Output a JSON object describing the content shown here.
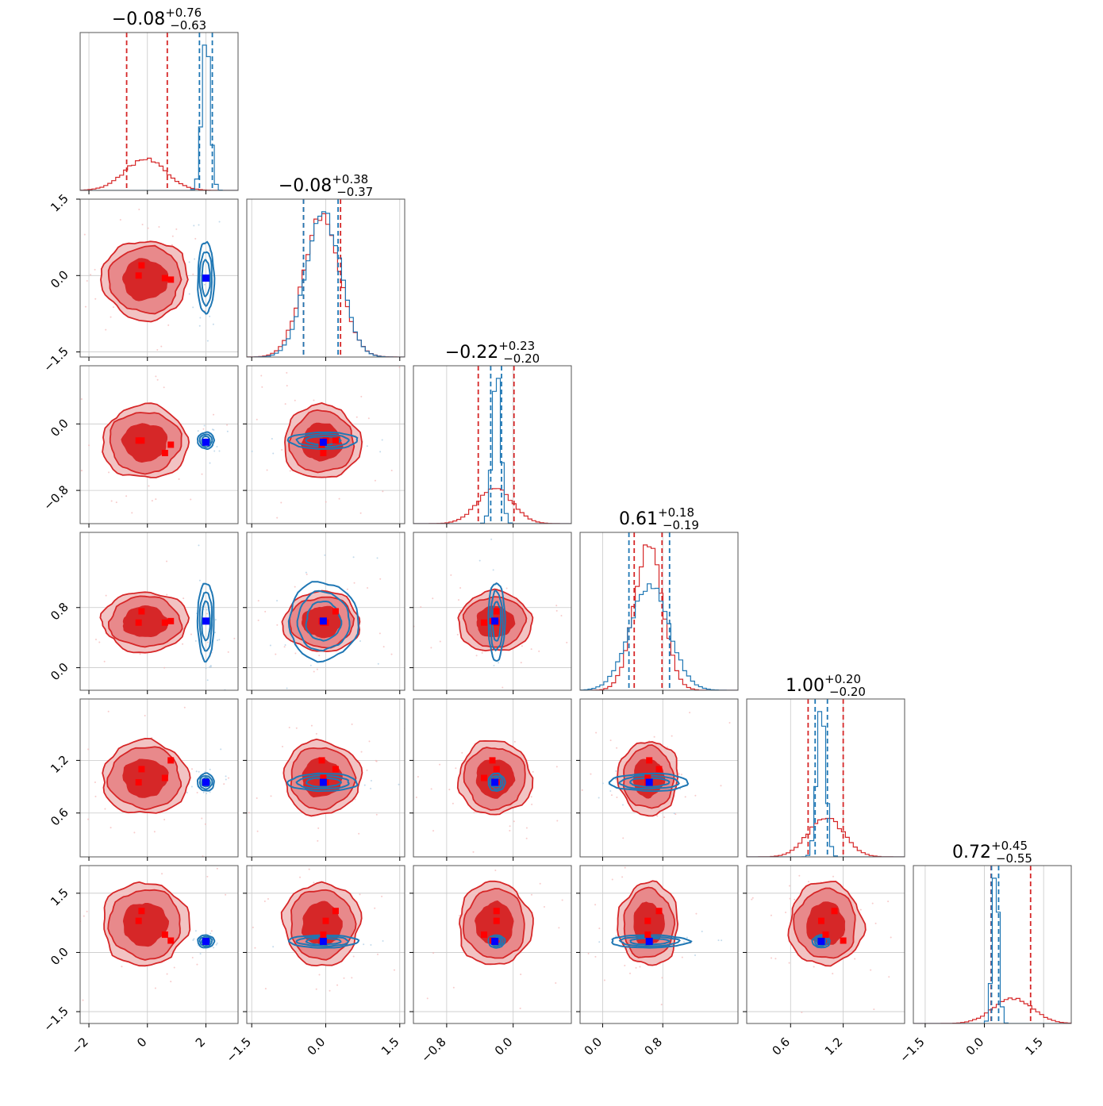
{
  "chart_data": {
    "type": "corner",
    "n_params": 6,
    "colors": {
      "red": "#d62728",
      "blue": "#1f77b4",
      "marker_red": "#ff0000",
      "marker_blue": "#0000ff"
    },
    "series": [
      {
        "color_key": "red",
        "medians": [
          -0.08,
          -0.08,
          -0.22,
          0.61,
          1.0,
          0.72
        ],
        "sigmas": [
          0.7,
          0.37,
          0.21,
          0.19,
          0.2,
          0.5
        ],
        "quantiles": [
          [
            -0.71,
            0.68
          ],
          [
            -0.45,
            0.3
          ],
          [
            -0.42,
            0.01
          ],
          [
            0.42,
            0.79
          ],
          [
            0.8,
            1.2
          ],
          [
            0.17,
            1.17
          ]
        ]
      },
      {
        "color_key": "blue",
        "medians": [
          2.0,
          -0.05,
          -0.2,
          0.62,
          0.95,
          0.28
        ],
        "sigmas": [
          0.14,
          0.35,
          0.05,
          0.26,
          0.05,
          0.08
        ],
        "quantiles": [
          [
            1.78,
            2.22
          ],
          [
            -0.45,
            0.25
          ],
          [
            -0.27,
            -0.14
          ],
          [
            0.35,
            0.89
          ],
          [
            0.88,
            1.02
          ],
          [
            0.18,
            0.36
          ]
        ]
      }
    ],
    "titles": [
      {
        "main": "−0.08",
        "sup": "+0.76",
        "sub": "−0.63"
      },
      {
        "main": "−0.08",
        "sup": "+0.38",
        "sub": "−0.37"
      },
      {
        "main": "−0.22",
        "sup": "+0.23",
        "sub": "−0.20"
      },
      {
        "main": "0.61",
        "sup": "+0.18",
        "sub": "−0.19"
      },
      {
        "main": "1.00",
        "sup": "+0.20",
        "sub": "−0.20"
      },
      {
        "main": "0.72",
        "sup": "+0.45",
        "sub": "−0.55"
      }
    ],
    "ranges": [
      [
        -2.3,
        3.1
      ],
      [
        -1.6,
        1.6
      ],
      [
        -1.2,
        0.7
      ],
      [
        -0.3,
        1.8
      ],
      [
        0.1,
        1.9
      ],
      [
        -1.8,
        2.2
      ]
    ],
    "y_ranges": [
      null,
      [
        -1.6,
        1.5
      ],
      [
        -1.2,
        0.7
      ],
      [
        -0.3,
        1.8
      ],
      [
        0.1,
        1.9
      ],
      [
        -1.8,
        2.2
      ]
    ],
    "ticks": [
      [
        -2,
        0,
        2
      ],
      [
        -1.5,
        0.0,
        1.5
      ],
      [
        -0.8,
        0.0
      ],
      [
        0.0,
        0.8
      ],
      [
        0.6,
        1.2
      ],
      [
        -1.5,
        0.0,
        1.5
      ]
    ],
    "tick_labels": [
      [
        "−2",
        "0",
        "2"
      ],
      [
        "−1.5",
        "0.0",
        "1.5"
      ],
      [
        "−0.8",
        "0.0"
      ],
      [
        "0.0",
        "0.8"
      ],
      [
        "0.6",
        "1.2"
      ],
      [
        "−1.5",
        "0.0",
        "1.5"
      ]
    ],
    "y_ticks": [
      null,
      [
        -1.5,
        0.0,
        1.5
      ],
      [
        -0.8,
        0.0
      ],
      [
        0.0,
        0.8
      ],
      [
        0.6,
        1.2
      ],
      [
        -1.5,
        0.0,
        1.5
      ]
    ],
    "y_tick_labels": [
      null,
      [
        "−1.5",
        "0.0",
        "1.5"
      ],
      [
        "−0.8",
        "0.0"
      ],
      [
        "0.0",
        "0.8"
      ],
      [
        "0.6",
        "1.2"
      ],
      [
        "−1.5",
        "0.0",
        "1.5"
      ]
    ],
    "truth_blue": [
      2.0,
      -0.05,
      -0.22,
      0.62,
      0.95,
      0.28
    ],
    "red_markers": [
      [
        -0.3,
        0.0,
        -0.2,
        0.6,
        0.95,
        0.8
      ],
      [
        0.6,
        -0.05,
        -0.35,
        0.6,
        1.0,
        0.45
      ],
      [
        0.8,
        -0.08,
        -0.25,
        0.62,
        1.2,
        0.3
      ],
      [
        -0.2,
        0.2,
        -0.2,
        0.75,
        1.1,
        1.05
      ]
    ],
    "grid": true,
    "xlabel": "",
    "ylabel": ""
  }
}
